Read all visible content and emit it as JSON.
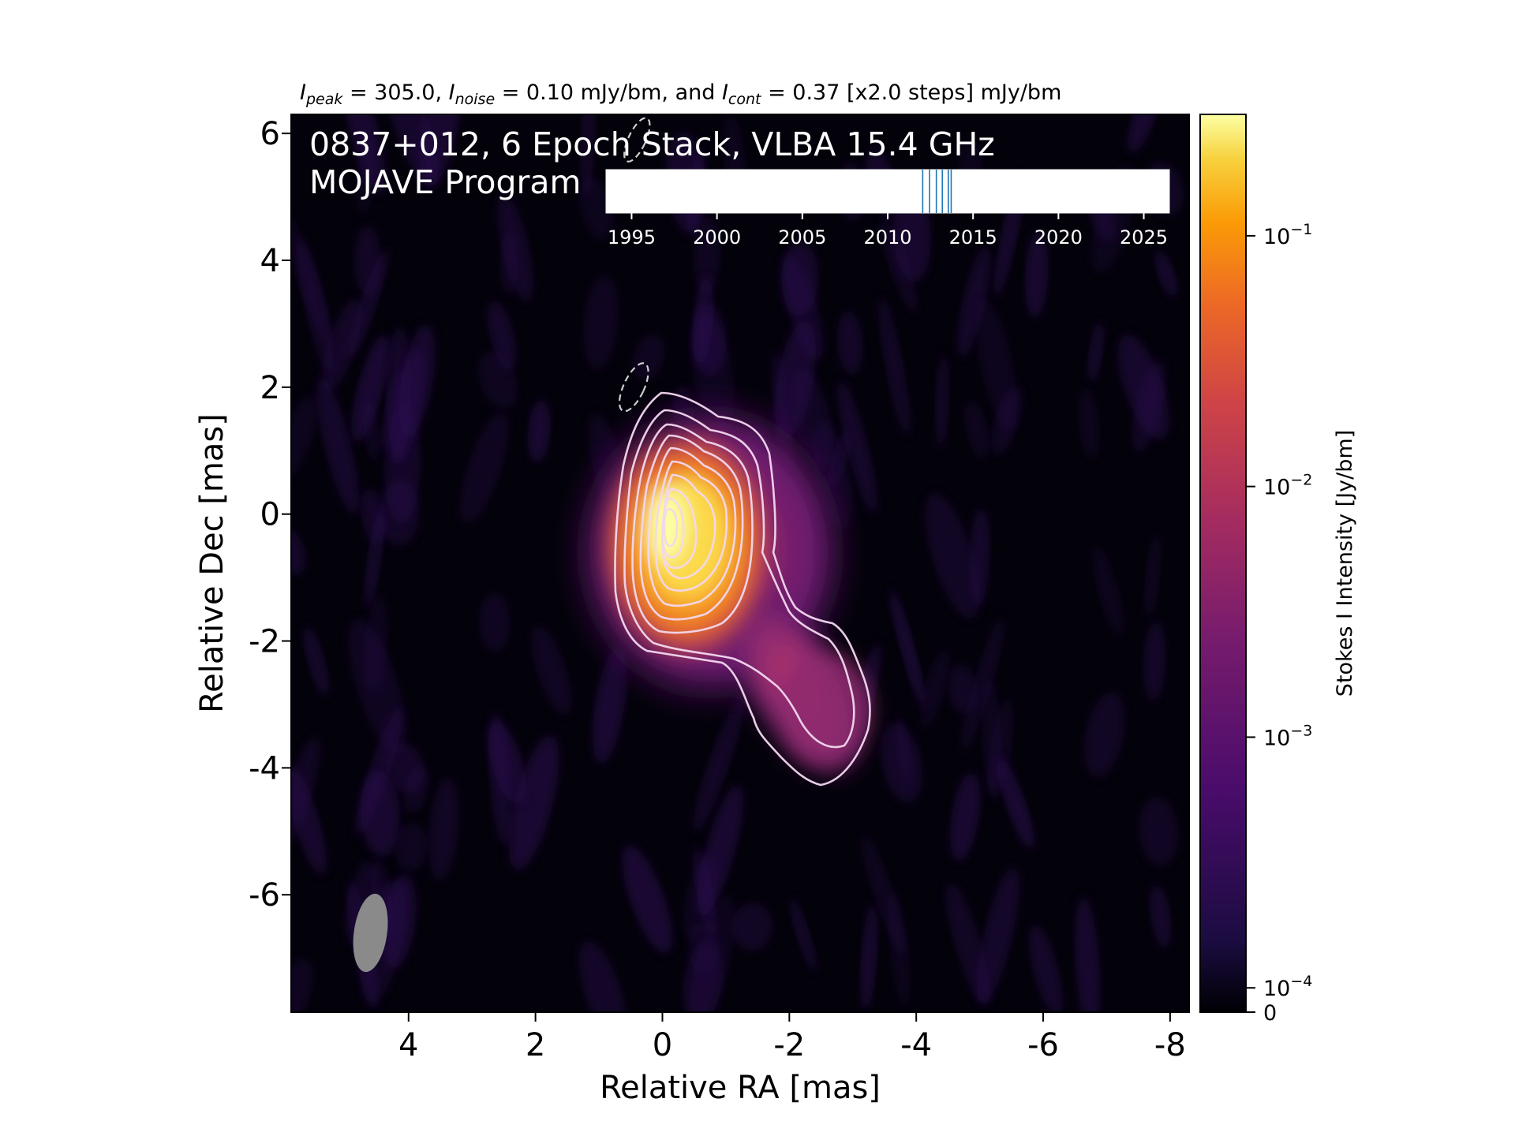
{
  "chart_data": {
    "type": "heatmap",
    "title_parts": {
      "peak_label": "I",
      "peak_sub": "peak",
      "peak_text": " = 305.0, ",
      "noise_label": "I",
      "noise_sub": "noise",
      "noise_text": " = 0.10 mJy/bm, and ",
      "cont_label": "I",
      "cont_sub": "cont",
      "cont_text": " = 0.37 [x2.0 steps] mJy/bm"
    },
    "annotation_lines": [
      "0837+012, 6 Epoch Stack, VLBA 15.4 GHz",
      "MOJAVE Program"
    ],
    "xlabel": "Relative RA [mas]",
    "ylabel": "Relative Dec [mas]",
    "xlim": [
      5.85,
      -8.3
    ],
    "ylim": [
      -7.85,
      6.3
    ],
    "x_ticks": [
      4,
      2,
      0,
      -2,
      -4,
      -6,
      -8
    ],
    "x_tick_labels": [
      "4",
      "2",
      "0",
      "-2",
      "-4",
      "-6",
      "-8"
    ],
    "y_ticks": [
      6,
      4,
      2,
      0,
      -2,
      -4,
      -6
    ],
    "y_tick_labels": [
      "6",
      "4",
      "2",
      "0",
      "-2",
      "-4",
      "-6"
    ],
    "peak_intensity_mJy_per_beam": 305.0,
    "noise_mJy_per_beam": 0.1,
    "lowest_contour_mJy_per_beam": 0.37,
    "contour_step_factor": 2.0,
    "core": {
      "ra": 0,
      "dec": 0
    },
    "jet_feature": {
      "ra": -2.6,
      "dec": -3.0
    },
    "beam": {
      "ra": 4.6,
      "dec": -6.6,
      "major_mas": 1.25,
      "minor_mas": 0.55
    },
    "negative_contours": [
      {
        "ra": 0.45,
        "dec": 2.0
      },
      {
        "ra": 0.4,
        "dec": 5.9
      }
    ],
    "colorbar": {
      "label": "Stokes I Intensity [Jy/bm]",
      "scale": "log",
      "colormap": "inferno",
      "range_Jy_per_beam": [
        8e-05,
        0.305
      ],
      "ticks": [
        {
          "base": "10",
          "exp": "−1",
          "value": 0.1
        },
        {
          "base": "10",
          "exp": "−2",
          "value": 0.01
        },
        {
          "base": "10",
          "exp": "−3",
          "value": 0.001
        },
        {
          "base": "10",
          "exp": "−4",
          "value": 0.0001
        }
      ],
      "zero_label": "0"
    },
    "epoch_timeline": {
      "xlim": [
        1993.5,
        2026.5
      ],
      "ticks": [
        1995,
        2000,
        2005,
        2010,
        2015,
        2020,
        2025
      ],
      "tick_labels": [
        "1995",
        "2000",
        "2005",
        "2010",
        "2015",
        "2020",
        "2025"
      ],
      "epochs": [
        2012.05,
        2012.45,
        2012.85,
        2013.2,
        2013.55,
        2013.72
      ],
      "epoch_color": "#1f77b4"
    }
  }
}
